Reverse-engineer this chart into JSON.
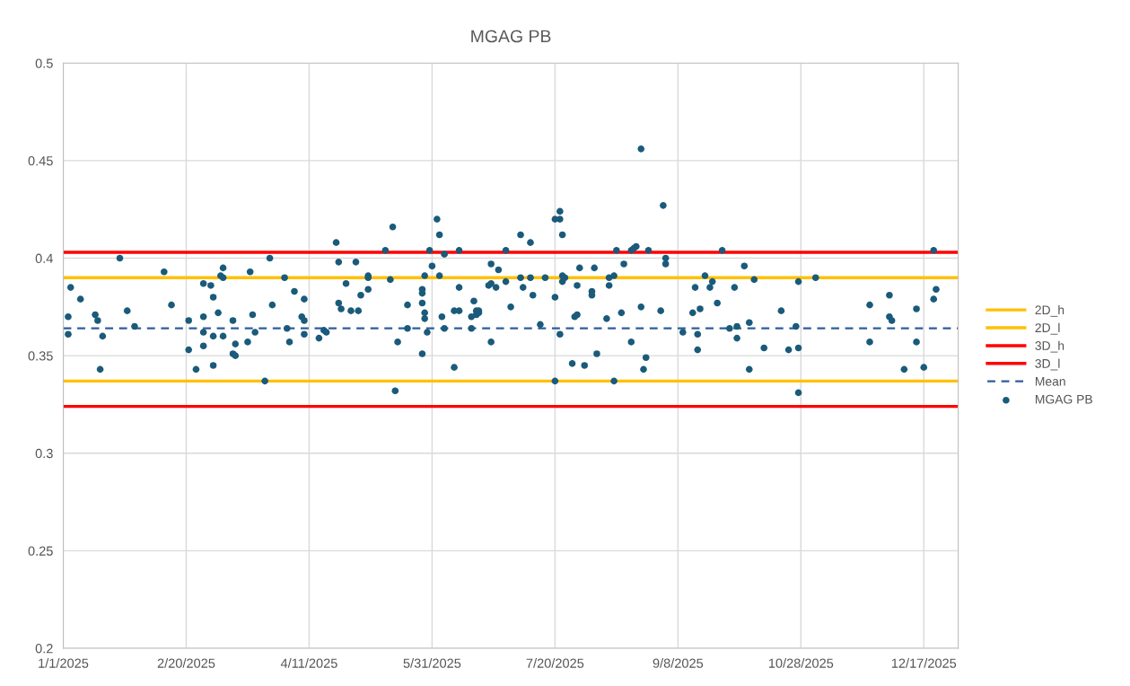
{
  "chart_data": {
    "type": "scatter",
    "title": "MGAG PB",
    "xlim": [
      "2025-01-01",
      "2025-12-31"
    ],
    "xticks": [
      {
        "value": "2025-01-01",
        "label": "1/1/2025"
      },
      {
        "value": "2025-02-20",
        "label": "2/20/2025"
      },
      {
        "value": "2025-04-11",
        "label": "4/11/2025"
      },
      {
        "value": "2025-05-31",
        "label": "5/31/2025"
      },
      {
        "value": "2025-07-20",
        "label": "7/20/2025"
      },
      {
        "value": "2025-09-08",
        "label": "9/8/2025"
      },
      {
        "value": "2025-10-28",
        "label": "10/28/2025"
      },
      {
        "value": "2025-12-17",
        "label": "12/17/2025"
      }
    ],
    "ylim": [
      0.2,
      0.5
    ],
    "yticks": [
      0.2,
      0.25,
      0.3,
      0.35,
      0.4,
      0.45,
      0.5
    ],
    "grid": true,
    "legend": "right",
    "marker": "circle",
    "ref_lines": [
      {
        "axis": "y",
        "value": 0.39,
        "label": "2D_h",
        "color": "#ffc000",
        "line_style": "solid"
      },
      {
        "axis": "y",
        "value": 0.337,
        "label": "2D_l",
        "color": "#ffc000",
        "line_style": "solid"
      },
      {
        "axis": "y",
        "value": 0.403,
        "label": "3D_h",
        "color": "#ff0000",
        "line_style": "solid"
      },
      {
        "axis": "y",
        "value": 0.324,
        "label": "3D_l",
        "color": "#ff0000",
        "line_style": "solid"
      },
      {
        "axis": "y",
        "value": 0.364,
        "label": "Mean",
        "color": "#2e5c9e",
        "line_style": "dashed"
      }
    ],
    "series": [
      {
        "name": "MGAG PB",
        "color": "#1a5a7a",
        "x": [
          "2025-01-03",
          "2025-01-03",
          "2025-01-04",
          "2025-01-08",
          "2025-01-14",
          "2025-01-15",
          "2025-01-17",
          "2025-01-16",
          "2025-01-24",
          "2025-01-27",
          "2025-01-30",
          "2025-02-11",
          "2025-02-14",
          "2025-02-21",
          "2025-02-21",
          "2025-02-24",
          "2025-02-27",
          "2025-02-27",
          "2025-02-27",
          "2025-02-27",
          "2025-03-02",
          "2025-03-03",
          "2025-03-03",
          "2025-03-03",
          "2025-03-05",
          "2025-03-06",
          "2025-03-07",
          "2025-03-07",
          "2025-03-07",
          "2025-03-11",
          "2025-03-11",
          "2025-03-12",
          "2025-03-12",
          "2025-03-17",
          "2025-03-18",
          "2025-03-19",
          "2025-03-20",
          "2025-03-24",
          "2025-03-26",
          "2025-03-27",
          "2025-04-01",
          "2025-04-02",
          "2025-04-03",
          "2025-04-05",
          "2025-04-08",
          "2025-04-09",
          "2025-04-09",
          "2025-04-09",
          "2025-04-15",
          "2025-04-17",
          "2025-04-18",
          "2025-04-22",
          "2025-04-23",
          "2025-04-23",
          "2025-04-24",
          "2025-04-26",
          "2025-04-28",
          "2025-04-30",
          "2025-05-01",
          "2025-05-02",
          "2025-05-05",
          "2025-05-05",
          "2025-05-05",
          "2025-05-12",
          "2025-05-14",
          "2025-05-15",
          "2025-05-17",
          "2025-05-16",
          "2025-05-21",
          "2025-05-21",
          "2025-05-27",
          "2025-05-27",
          "2025-05-27",
          "2025-05-27",
          "2025-05-28",
          "2025-05-28",
          "2025-05-29",
          "2025-05-28",
          "2025-05-30",
          "2025-05-31",
          "2025-06-02",
          "2025-06-03",
          "2025-06-03",
          "2025-06-04",
          "2025-06-05",
          "2025-06-05",
          "2025-06-09",
          "2025-06-09",
          "2025-06-11",
          "2025-06-11",
          "2025-06-11",
          "2025-06-16",
          "2025-06-16",
          "2025-06-17",
          "2025-06-18",
          "2025-06-18",
          "2025-06-19",
          "2025-06-19",
          "2025-06-23",
          "2025-06-24",
          "2025-06-24",
          "2025-06-24",
          "2025-06-26",
          "2025-06-27",
          "2025-06-30",
          "2025-06-30",
          "2025-07-02",
          "2025-07-06",
          "2025-07-07",
          "2025-07-06",
          "2025-07-10",
          "2025-07-10",
          "2025-07-11",
          "2025-07-14",
          "2025-07-16",
          "2025-07-20",
          "2025-07-20",
          "2025-07-20",
          "2025-07-22",
          "2025-07-22",
          "2025-07-23",
          "2025-07-22",
          "2025-07-23",
          "2025-07-23",
          "2025-07-24",
          "2025-07-27",
          "2025-07-28",
          "2025-07-29",
          "2025-07-29",
          "2025-07-30",
          "2025-08-01",
          "2025-08-04",
          "2025-08-04",
          "2025-08-05",
          "2025-08-06",
          "2025-08-10",
          "2025-08-11",
          "2025-08-11",
          "2025-08-13",
          "2025-08-13",
          "2025-08-14",
          "2025-08-16",
          "2025-08-17",
          "2025-08-20",
          "2025-08-21",
          "2025-08-22",
          "2025-08-20",
          "2025-08-24",
          "2025-08-24",
          "2025-08-25",
          "2025-08-26",
          "2025-08-27",
          "2025-09-01",
          "2025-09-02",
          "2025-09-03",
          "2025-09-03",
          "2025-09-10",
          "2025-09-14",
          "2025-09-15",
          "2025-09-16",
          "2025-09-16",
          "2025-09-17",
          "2025-09-19",
          "2025-09-21",
          "2025-09-22",
          "2025-09-24",
          "2025-09-26",
          "2025-09-29",
          "2025-10-01",
          "2025-10-02",
          "2025-10-02",
          "2025-10-05",
          "2025-10-07",
          "2025-10-07",
          "2025-10-09",
          "2025-10-13",
          "2025-10-20",
          "2025-10-23",
          "2025-10-26",
          "2025-10-27",
          "2025-10-27",
          "2025-10-27",
          "2025-11-03",
          "2025-11-25",
          "2025-11-25",
          "2025-12-03",
          "2025-12-03",
          "2025-12-04",
          "2025-12-09",
          "2025-12-14",
          "2025-12-14",
          "2025-12-17",
          "2025-12-21",
          "2025-12-22",
          "2025-12-21"
        ],
        "values": [
          0.37,
          0.361,
          0.385,
          0.379,
          0.371,
          0.368,
          0.36,
          0.343,
          0.4,
          0.373,
          0.365,
          0.393,
          0.376,
          0.368,
          0.353,
          0.343,
          0.387,
          0.37,
          0.362,
          0.355,
          0.386,
          0.38,
          0.36,
          0.345,
          0.372,
          0.391,
          0.39,
          0.395,
          0.36,
          0.368,
          0.351,
          0.356,
          0.35,
          0.357,
          0.393,
          0.371,
          0.362,
          0.337,
          0.4,
          0.376,
          0.39,
          0.364,
          0.357,
          0.383,
          0.37,
          0.368,
          0.379,
          0.361,
          0.359,
          0.363,
          0.362,
          0.408,
          0.398,
          0.377,
          0.374,
          0.387,
          0.373,
          0.398,
          0.373,
          0.381,
          0.391,
          0.39,
          0.384,
          0.404,
          0.389,
          0.416,
          0.357,
          0.332,
          0.376,
          0.364,
          0.351,
          0.382,
          0.384,
          0.377,
          0.372,
          0.369,
          0.362,
          0.391,
          0.404,
          0.396,
          0.42,
          0.412,
          0.391,
          0.37,
          0.402,
          0.364,
          0.344,
          0.373,
          0.373,
          0.404,
          0.385,
          0.37,
          0.364,
          0.378,
          0.373,
          0.371,
          0.373,
          0.372,
          0.386,
          0.397,
          0.357,
          0.387,
          0.385,
          0.394,
          0.404,
          0.388,
          0.375,
          0.412,
          0.385,
          0.39,
          0.408,
          0.39,
          0.381,
          0.366,
          0.39,
          0.337,
          0.38,
          0.42,
          0.42,
          0.424,
          0.412,
          0.361,
          0.388,
          0.391,
          0.39,
          0.346,
          0.37,
          0.386,
          0.371,
          0.395,
          0.345,
          0.383,
          0.381,
          0.395,
          0.351,
          0.369,
          0.386,
          0.39,
          0.337,
          0.391,
          0.404,
          0.372,
          0.397,
          0.404,
          0.405,
          0.406,
          0.357,
          0.456,
          0.375,
          0.343,
          0.349,
          0.404,
          0.373,
          0.427,
          0.4,
          0.397,
          0.362,
          0.372,
          0.385,
          0.361,
          0.353,
          0.374,
          0.391,
          0.385,
          0.388,
          0.377,
          0.404,
          0.364,
          0.385,
          0.359,
          0.365,
          0.396,
          0.343,
          0.367,
          0.389,
          0.354,
          0.373,
          0.353,
          0.365,
          0.388,
          0.354,
          0.331,
          0.39,
          0.376,
          0.357,
          0.37,
          0.381,
          0.368,
          0.343,
          0.374,
          0.357,
          0.344,
          0.379,
          0.384,
          0.404
        ]
      }
    ]
  }
}
